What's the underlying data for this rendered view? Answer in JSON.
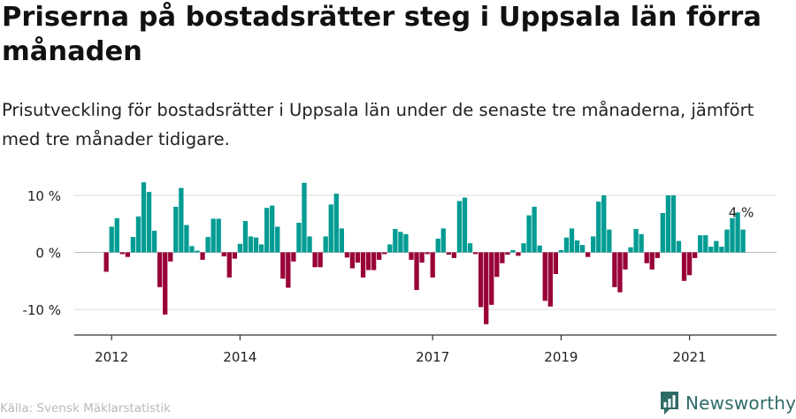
{
  "header": {
    "title": "Priserna på bostadsrätter steg i Uppsala län förra månaden",
    "subtitle": "Prisutveckling för bostadsrätter i Uppsala län under de senaste tre månaderna, jämfört med tre månader tidigare."
  },
  "footer": {
    "source": "Källa: Svensk Mäklarstatistik",
    "brand": "Newsworthy"
  },
  "colors": {
    "positive": "#009c93",
    "negative": "#990038",
    "grid": "#dddddd",
    "axis": "#333333"
  },
  "chart_data": {
    "type": "bar",
    "title": "Priserna på bostadsrätter steg i Uppsala län förra månaden",
    "xlabel": "",
    "ylabel": "",
    "ylim": [
      -14.5,
      12.5
    ],
    "yticks": [
      10,
      0,
      -10
    ],
    "ytick_labels": [
      "10 %",
      "0 %",
      "-10 %"
    ],
    "unit": "%",
    "x_start": "2011-12",
    "x_tick_labels": [
      "2012",
      "2014",
      "2017",
      "2019",
      "2021"
    ],
    "x_tick_months": [
      "2012-01",
      "2014-01",
      "2017-01",
      "2019-01",
      "2021-01"
    ],
    "last_value_label": "4 %",
    "values": [
      -3.4,
      4.5,
      6.0,
      -0.3,
      -0.8,
      2.7,
      6.3,
      12.3,
      10.6,
      3.8,
      -6.1,
      -10.9,
      -1.6,
      8.0,
      11.3,
      4.8,
      1.1,
      0.3,
      -1.3,
      2.7,
      5.9,
      5.9,
      -0.7,
      -4.4,
      -1.1,
      1.5,
      5.5,
      2.8,
      2.6,
      1.4,
      7.8,
      8.2,
      4.5,
      -4.6,
      -6.2,
      -1.6,
      5.2,
      12.2,
      2.8,
      -2.6,
      -2.6,
      2.8,
      8.4,
      10.3,
      4.2,
      -0.9,
      -2.8,
      -1.8,
      -4.4,
      -3.1,
      -3.1,
      -1.3,
      -0.3,
      1.4,
      4.1,
      3.6,
      3.2,
      -1.3,
      -6.6,
      -1.8,
      -0.3,
      -4.4,
      2.4,
      4.2,
      -0.4,
      -1.0,
      9.0,
      9.6,
      1.6,
      -0.3,
      -9.6,
      -12.6,
      -9.2,
      -4.3,
      -1.9,
      -0.4,
      0.4,
      -0.6,
      1.6,
      6.5,
      8.0,
      1.2,
      -8.5,
      -9.5,
      -3.8,
      0.4,
      2.6,
      4.2,
      2.1,
      1.3,
      -0.8,
      2.8,
      8.9,
      10.0,
      4.0,
      -6.1,
      -7.0,
      -3.0,
      0.9,
      4.1,
      3.2,
      -1.9,
      -3.0,
      -1.0,
      6.9,
      10.0,
      10.0,
      2.0,
      -5.0,
      -4.0,
      -1.0,
      3.0,
      3.0,
      1.0,
      2.0,
      1.0,
      4.0,
      6.0,
      7.0,
      4.0
    ]
  }
}
